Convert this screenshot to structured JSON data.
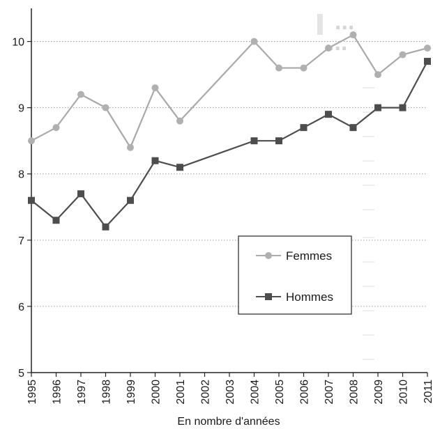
{
  "chart_data": {
    "type": "line",
    "title": "",
    "xlabel": "En nombre d'années",
    "ylabel": "",
    "categories": [
      "1995",
      "1996",
      "1997",
      "1998",
      "1999",
      "2000",
      "2001",
      "2002",
      "2003",
      "2004",
      "2005",
      "2006",
      "2007",
      "2008",
      "2009",
      "2010",
      "2011"
    ],
    "ylim": [
      5,
      10.5
    ],
    "yticks": [
      5,
      6,
      7,
      8,
      9,
      10
    ],
    "grid": "horizontal dotted",
    "legend_position": "center-right",
    "series": [
      {
        "name": "Femmes",
        "color": "#a9a9a9",
        "marker": "circle",
        "values": [
          8.5,
          8.7,
          9.2,
          9.0,
          8.4,
          9.3,
          8.8,
          null,
          null,
          10.0,
          9.6,
          9.6,
          9.9,
          10.1,
          9.5,
          9.8,
          9.9
        ]
      },
      {
        "name": "Hommes",
        "color": "#4d4d4d",
        "marker": "square",
        "values": [
          7.6,
          7.3,
          7.7,
          7.2,
          7.6,
          8.2,
          8.1,
          null,
          null,
          8.5,
          8.5,
          8.7,
          8.9,
          8.7,
          9.0,
          9.0,
          9.7
        ]
      }
    ]
  }
}
